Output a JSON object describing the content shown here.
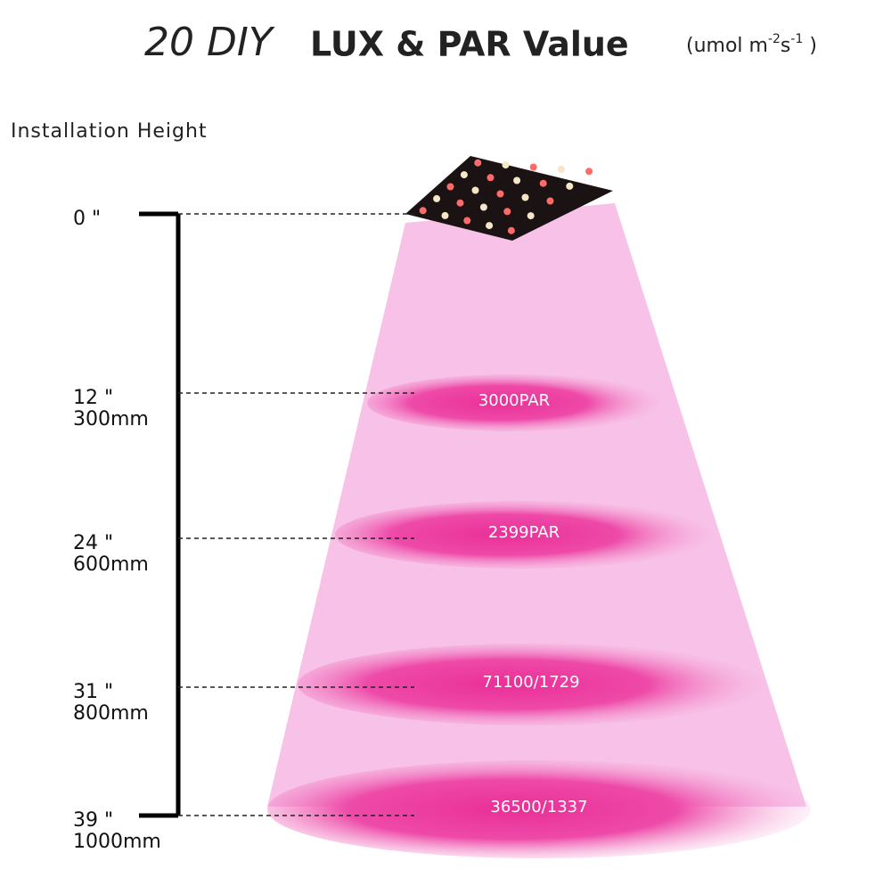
{
  "title": {
    "prefix": "20 DIY",
    "main": "LUX & PAR Value",
    "unit": [
      "(umol m",
      "-2",
      "s",
      "-1",
      " )"
    ]
  },
  "axis_label": "Installation Height",
  "levels": [
    {
      "height": "0 \""
    },
    {
      "height": "12 \"",
      "metric": "300mm",
      "reading": "3000PAR"
    },
    {
      "height": "24 \"",
      "metric": "600mm",
      "reading": "2399PAR"
    },
    {
      "height": "31 \"",
      "metric": "800mm",
      "reading": "71100/1729"
    },
    {
      "height": "39 \"",
      "metric": "1000mm",
      "reading": "36500/1337"
    }
  ]
}
